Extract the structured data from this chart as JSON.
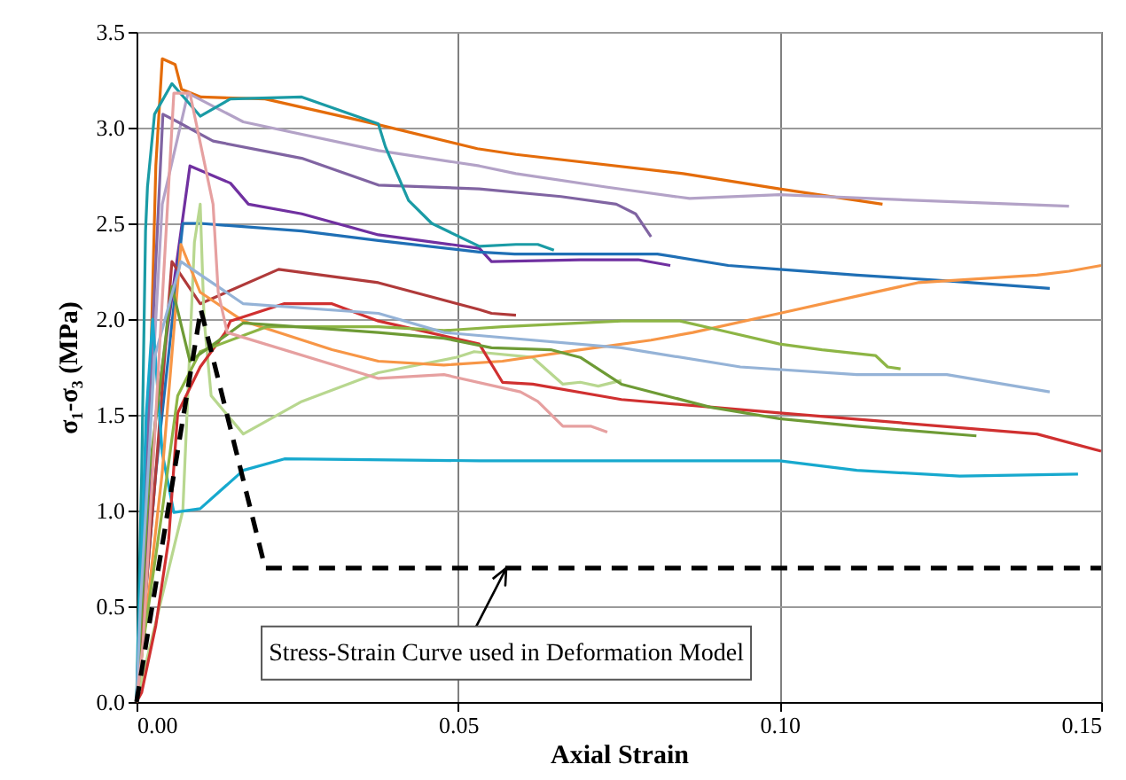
{
  "chart_data": {
    "type": "line",
    "xlabel": "Axial Strain",
    "ylabel": "σ₁-σ₃ (MPa)",
    "xlim": [
      0,
      0.15
    ],
    "ylim": [
      0,
      3.5
    ],
    "xticks": [
      {
        "value": 0,
        "label": "0.00"
      },
      {
        "value": 0.05,
        "label": "0.05"
      },
      {
        "value": 0.1,
        "label": "0.10"
      },
      {
        "value": 0.15,
        "label": "0.15"
      }
    ],
    "yticks": [
      {
        "value": 0,
        "label": "0.0"
      },
      {
        "value": 0.5,
        "label": "0.5"
      },
      {
        "value": 1,
        "label": "1.0"
      },
      {
        "value": 1.5,
        "label": "1.5"
      },
      {
        "value": 2,
        "label": "2.0"
      },
      {
        "value": 2.5,
        "label": "2.5"
      },
      {
        "value": 3,
        "label": "3.0"
      },
      {
        "value": 3.5,
        "label": "3.5"
      }
    ],
    "grid": true,
    "annotations": [
      {
        "text": "Stress-Strain Curve used in Deformation Model",
        "x": 0.0575,
        "y": 0.7
      }
    ],
    "series": [
      {
        "color": "#E46C0A",
        "x": [
          0,
          0.002,
          0.003,
          0.004,
          0.006,
          0.007,
          0.01,
          0.02,
          0.037,
          0.053,
          0.059,
          0.085,
          0.1,
          0.116
        ],
        "values": [
          0,
          1.5,
          2.8,
          3.36,
          3.33,
          3.2,
          3.16,
          3.15,
          3.02,
          2.89,
          2.86,
          2.76,
          2.68,
          2.6
        ]
      },
      {
        "color": "#B3A2C7",
        "x": [
          0,
          0.002,
          0.004,
          0.008,
          0.0166,
          0.0376,
          0.0533,
          0.059,
          0.073,
          0.086,
          0.1,
          0.1215,
          0.145
        ],
        "values": [
          0,
          1.4,
          2.6,
          3.18,
          3.03,
          2.88,
          2.8,
          2.76,
          2.69,
          2.63,
          2.65,
          2.62,
          2.59
        ]
      },
      {
        "color": "#8064A2",
        "x": [
          0,
          0.002,
          0.0041,
          0.0064,
          0.0119,
          0.0257,
          0.0376,
          0.0533,
          0.066,
          0.0746,
          0.0776,
          0.08
        ],
        "values": [
          0,
          1.6,
          3.07,
          3.03,
          2.93,
          2.84,
          2.7,
          2.68,
          2.64,
          2.6,
          2.55,
          2.43
        ]
      },
      {
        "color": "#7030A0",
        "x": [
          0,
          0.003,
          0.0083,
          0.0146,
          0.0174,
          0.0257,
          0.0376,
          0.0533,
          0.0552,
          0.069,
          0.078,
          0.083
        ],
        "values": [
          0,
          1.5,
          2.8,
          2.71,
          2.6,
          2.55,
          2.44,
          2.37,
          2.3,
          2.31,
          2.31,
          2.28
        ]
      },
      {
        "color": "#1A9BA5",
        "x": [
          0,
          0.0008,
          0.0014,
          0.0017,
          0.0028,
          0.0055,
          0.0099,
          0.0146,
          0.0257,
          0.0376,
          0.0387,
          0.0423,
          0.0459,
          0.0533,
          0.059,
          0.0624,
          0.0649
        ],
        "values": [
          0,
          1.2,
          2.46,
          2.69,
          3.07,
          3.23,
          3.06,
          3.15,
          3.16,
          3.02,
          2.9,
          2.62,
          2.5,
          2.38,
          2.39,
          2.39,
          2.36
        ]
      },
      {
        "color": "#1F6FB5",
        "x": [
          0,
          0.003,
          0.0072,
          0.0099,
          0.0257,
          0.0376,
          0.0533,
          0.0588,
          0.081,
          0.092,
          0.1,
          0.112,
          0.126,
          0.142
        ],
        "values": [
          0,
          1.2,
          2.5,
          2.5,
          2.46,
          2.41,
          2.35,
          2.34,
          2.34,
          2.28,
          2.26,
          2.23,
          2.2,
          2.16
        ]
      },
      {
        "color": "#B03A3A",
        "x": [
          0,
          0.003,
          0.0055,
          0.0099,
          0.0221,
          0.0376,
          0.0533,
          0.0552,
          0.059
        ],
        "values": [
          0,
          1.2,
          2.3,
          2.08,
          2.26,
          2.19,
          2.05,
          2.03,
          2.02
        ]
      },
      {
        "color": "#B8D78F",
        "x": [
          0,
          0.0072,
          0.009,
          0.0099,
          0.0105,
          0.0116,
          0.0166,
          0.0257,
          0.0376,
          0.0497,
          0.0525,
          0.0616,
          0.0663,
          0.069,
          0.0718,
          0.0754
        ],
        "values": [
          0,
          1.0,
          2.4,
          2.6,
          2.0,
          1.6,
          1.4,
          1.57,
          1.72,
          1.8,
          1.83,
          1.8,
          1.66,
          1.67,
          1.65,
          1.68
        ]
      },
      {
        "color": "#17A9CE",
        "x": [
          0,
          0.0015,
          0.0025,
          0.004,
          0.0058,
          0.0099,
          0.0166,
          0.023,
          0.0533,
          0.1,
          0.112,
          0.128,
          0.1464
        ],
        "values": [
          0,
          1.5,
          2.0,
          1.3,
          0.99,
          1.01,
          1.21,
          1.27,
          1.26,
          1.26,
          1.21,
          1.18,
          1.19
        ]
      },
      {
        "color": "#F79646",
        "x": [
          0,
          0.004,
          0.0069,
          0.0099,
          0.0166,
          0.0304,
          0.0376,
          0.0478,
          0.0569,
          0.069,
          0.08,
          0.0865,
          0.1,
          0.112,
          0.1215,
          0.14,
          0.145,
          0.15
        ],
        "values": [
          0,
          1.2,
          2.39,
          2.14,
          1.99,
          1.84,
          1.78,
          1.76,
          1.78,
          1.84,
          1.89,
          1.93,
          2.03,
          2.12,
          2.19,
          2.23,
          2.25,
          2.28
        ]
      },
      {
        "color": "#D03030",
        "x": [
          0,
          0.0008,
          0.003,
          0.005,
          0.0064,
          0.0099,
          0.0138,
          0.0146,
          0.0229,
          0.0304,
          0.0376,
          0.0533,
          0.0569,
          0.0616,
          0.0754,
          0.1,
          0.14,
          0.15
        ],
        "values": [
          0,
          0.05,
          0.4,
          0.85,
          1.51,
          1.75,
          1.93,
          1.99,
          2.08,
          2.08,
          1.99,
          1.87,
          1.67,
          1.66,
          1.58,
          1.51,
          1.4,
          1.31
        ]
      },
      {
        "color": "#8DB545",
        "x": [
          0,
          0.001,
          0.004,
          0.0064,
          0.0099,
          0.0202,
          0.0376,
          0.0478,
          0.0569,
          0.0754,
          0.0845,
          0.091,
          0.1,
          0.1066,
          0.1149,
          0.1168,
          0.1188
        ],
        "values": [
          0,
          0.3,
          1.0,
          1.6,
          1.83,
          1.96,
          1.96,
          1.94,
          1.96,
          1.99,
          1.99,
          1.94,
          1.87,
          1.84,
          1.81,
          1.75,
          1.74
        ]
      },
      {
        "color": "#6E9B35",
        "x": [
          0,
          0.0005,
          0.002,
          0.0055,
          0.0083,
          0.0166,
          0.0376,
          0.0478,
          0.0552,
          0.0644,
          0.069,
          0.0754,
          0.0892,
          0.1,
          0.112,
          0.1306
        ],
        "values": [
          0,
          0.3,
          1.2,
          2.17,
          1.78,
          1.98,
          1.93,
          1.9,
          1.85,
          1.84,
          1.8,
          1.66,
          1.54,
          1.48,
          1.44,
          1.39
        ]
      },
      {
        "color": "#95B3D7",
        "x": [
          0,
          0.0006,
          0.0028,
          0.0069,
          0.0166,
          0.0376,
          0.0478,
          0.0754,
          0.0939,
          0.112,
          0.126,
          0.142
        ],
        "values": [
          0,
          0.5,
          1.8,
          2.3,
          2.08,
          2.03,
          1.93,
          1.85,
          1.75,
          1.71,
          1.71,
          1.62
        ]
      },
      {
        "color": "#E6A0A0",
        "x": [
          0,
          0.001,
          0.003,
          0.0058,
          0.0083,
          0.0119,
          0.0127,
          0.0141,
          0.0376,
          0.0478,
          0.0597,
          0.0624,
          0.0663,
          0.0707,
          0.0732
        ],
        "values": [
          0,
          0.3,
          1.5,
          3.18,
          3.18,
          2.6,
          2.14,
          1.93,
          1.69,
          1.71,
          1.62,
          1.57,
          1.44,
          1.44,
          1.41
        ]
      },
      {
        "color": "#000000",
        "line_style": "dashed",
        "x": [
          0,
          0.01,
          0.02,
          0.15
        ],
        "values": [
          0,
          2.05,
          0.7,
          0.7
        ]
      }
    ]
  }
}
